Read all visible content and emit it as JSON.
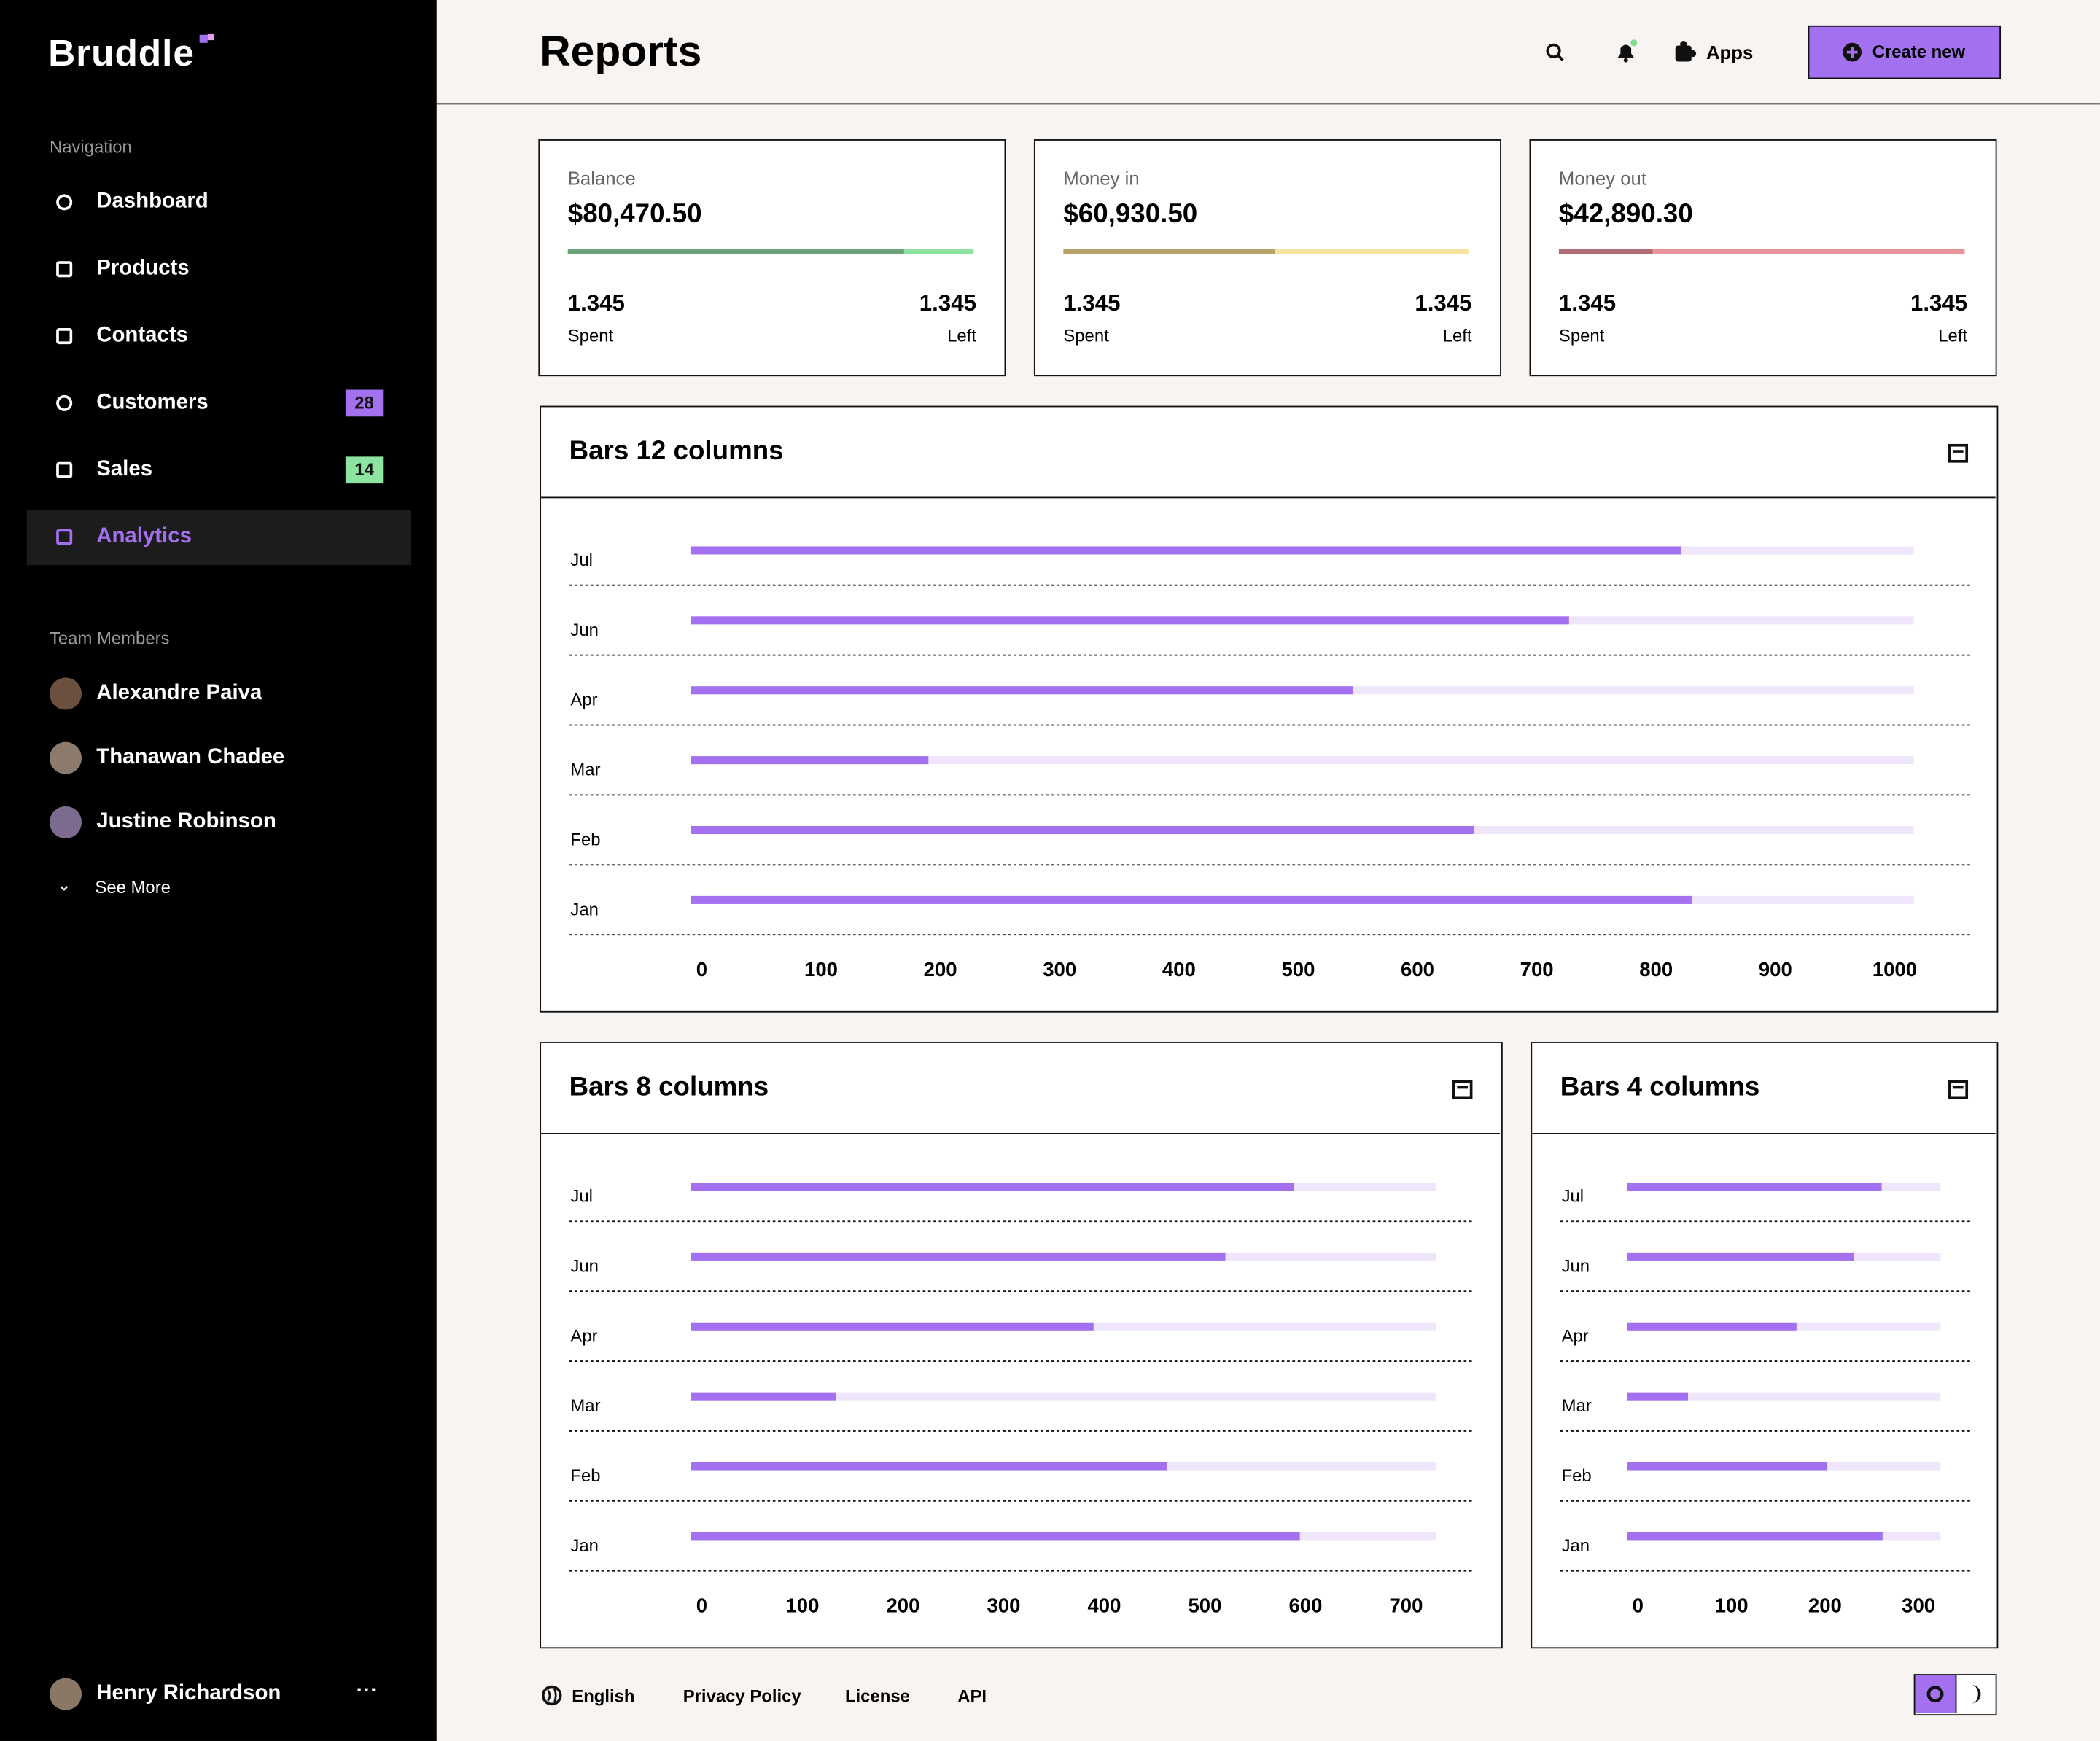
{
  "sidebar": {
    "logo": "Bruddle",
    "nav_heading": "Navigation",
    "nav": [
      {
        "label": "Dashboard"
      },
      {
        "label": "Products"
      },
      {
        "label": "Contacts"
      },
      {
        "label": "Customers",
        "badge": 28
      },
      {
        "label": "Sales",
        "badge": 14
      },
      {
        "label": "Analytics"
      }
    ],
    "team_heading": "Team Members",
    "team": [
      "Alexandre Paiva",
      "Thanawan Chadee",
      "Justine Robinson"
    ],
    "see_more": "See More",
    "user": "Henry Richardson"
  },
  "header": {
    "title": "Reports",
    "apps": "Apps",
    "create": "Create new"
  },
  "stats": [
    {
      "label": "Balance",
      "amount": "$80,470.50",
      "progress": 83,
      "color": "#6aa27a",
      "track_color": "#8de3a0",
      "spent_value": 1.345,
      "spent_label": "Spent",
      "left_value": 1.345,
      "left_label": "Left"
    },
    {
      "label": "Money in",
      "amount": "$60,930.50",
      "progress": 52,
      "color": "#b5a36a",
      "track_color": "#f6e3a0",
      "spent_value": 1.345,
      "spent_label": "Spent",
      "left_value": 1.345,
      "left_label": "Left"
    },
    {
      "label": "Money out",
      "amount": "$42,890.30",
      "progress": 23,
      "color": "#b06c74",
      "track_color": "#e8929a",
      "spent_value": 1.345,
      "spent_label": "Spent",
      "left_value": 1.345,
      "left_label": "Left"
    }
  ],
  "charts": [
    {
      "type": "bar",
      "title": "Bars 12 columns",
      "categories": [
        "Jul",
        "Jun",
        "Apr",
        "Mar",
        "Feb",
        "Jan"
      ],
      "values": [
        830,
        736,
        555,
        199,
        656,
        839
      ],
      "xlim": [
        0,
        1025
      ],
      "xticks": [
        0,
        100,
        200,
        300,
        400,
        500,
        600,
        700,
        800,
        900,
        1000
      ],
      "color": "#a370f0",
      "track_color": "#efe6fc"
    },
    {
      "type": "bar",
      "title": "Bars 8 columns",
      "categories": [
        "Jul",
        "Jun",
        "Apr",
        "Mar",
        "Feb",
        "Jan"
      ],
      "values": [
        599,
        531,
        400,
        144,
        473,
        605
      ],
      "xlim": [
        0,
        740
      ],
      "xticks": [
        0,
        100,
        200,
        300,
        400,
        500,
        600,
        700
      ],
      "color": "#a370f0",
      "track_color": "#efe6fc"
    },
    {
      "type": "bar",
      "title": "Bars 4 columns",
      "categories": [
        "Jul",
        "Jun",
        "Apr",
        "Mar",
        "Feb",
        "Jan"
      ],
      "values": [
        272,
        242,
        181,
        65,
        214,
        273
      ],
      "xlim": [
        0,
        335
      ],
      "xticks": [
        0,
        100,
        200,
        300
      ],
      "color": "#a370f0",
      "track_color": "#efe6fc"
    }
  ],
  "footer": {
    "language": "English",
    "links": [
      "Privacy Policy",
      "License",
      "API"
    ]
  }
}
